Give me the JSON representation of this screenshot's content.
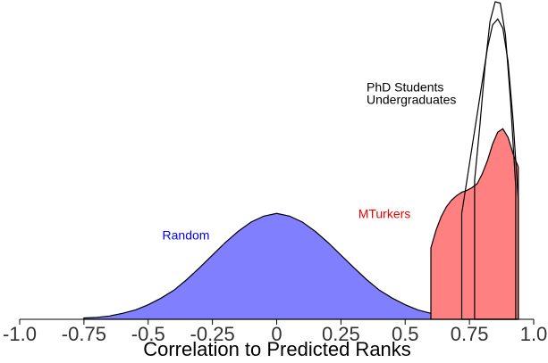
{
  "chart_data": {
    "type": "density",
    "xlabel": "Correlation to Predicted Ranks",
    "xlim": [
      -1.0,
      1.0
    ],
    "ylim": [
      0,
      4.8
    ],
    "xticks": [
      {
        "value": -1.0,
        "label": "-1.0"
      },
      -0.75,
      -0.5,
      -0.25,
      0,
      0.25,
      0.5,
      0.75,
      {
        "value": 1.0,
        "label": "1.0"
      }
    ],
    "series": [
      {
        "name": "Random",
        "color": "#8080ff",
        "label_color": "#0000ff",
        "x": [
          -0.75,
          -0.7,
          -0.65,
          -0.6,
          -0.55,
          -0.5,
          -0.45,
          -0.4,
          -0.35,
          -0.3,
          -0.25,
          -0.2,
          -0.15,
          -0.1,
          -0.05,
          0,
          0.05,
          0.1,
          0.15,
          0.2,
          0.25,
          0.3,
          0.35,
          0.4,
          0.45,
          0.5,
          0.55,
          0.6,
          0.65,
          0.7,
          0.75
        ],
        "values": [
          0.02,
          0.03,
          0.05,
          0.09,
          0.14,
          0.22,
          0.32,
          0.44,
          0.6,
          0.78,
          0.97,
          1.16,
          1.33,
          1.47,
          1.56,
          1.6,
          1.56,
          1.47,
          1.33,
          1.16,
          0.97,
          0.78,
          0.6,
          0.44,
          0.32,
          0.22,
          0.14,
          0.09,
          0.05,
          0.03,
          0.02
        ]
      },
      {
        "name": "MTurkers",
        "color": "#ff8080",
        "label_color": "#ee0000",
        "x": [
          0.6,
          0.62,
          0.64,
          0.66,
          0.68,
          0.7,
          0.72,
          0.74,
          0.76,
          0.78,
          0.8,
          0.82,
          0.84,
          0.86,
          0.88,
          0.9,
          0.92,
          0.94
        ],
        "values": [
          1.08,
          1.35,
          1.55,
          1.7,
          1.8,
          1.87,
          1.92,
          1.95,
          1.99,
          2.05,
          2.2,
          2.4,
          2.65,
          2.83,
          2.88,
          2.75,
          2.5,
          2.3
        ]
      },
      {
        "name": "Undergraduates",
        "color": "none",
        "label_color": "#000000",
        "x": [
          0.72,
          0.74,
          0.76,
          0.78,
          0.8,
          0.82,
          0.84,
          0.86,
          0.88,
          0.9,
          0.92,
          0.94
        ],
        "values": [
          1.6,
          2.1,
          2.6,
          3.1,
          3.6,
          4.1,
          4.45,
          4.54,
          4.4,
          3.9,
          3.0,
          1.8
        ]
      },
      {
        "name": "PhD Students",
        "color": "none",
        "label_color": "#000000",
        "x": [
          0.77,
          0.79,
          0.81,
          0.83,
          0.85,
          0.87,
          0.89,
          0.91,
          0.93
        ],
        "values": [
          2.1,
          2.9,
          3.8,
          4.5,
          4.8,
          4.78,
          4.3,
          3.3,
          2.0
        ]
      }
    ]
  }
}
